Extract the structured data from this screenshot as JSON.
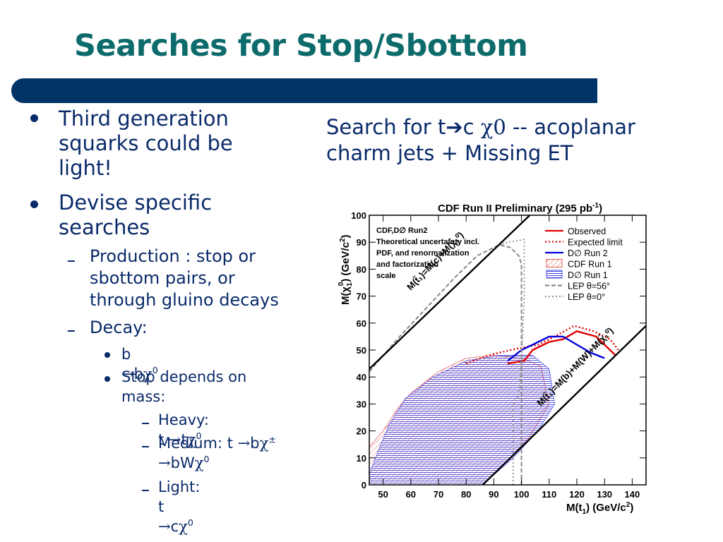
{
  "slide": {
    "title": "Searches for Stop/Sbottom"
  },
  "bullets": {
    "b1": "Third generation squarks could be light!",
    "b2": "Devise specific searches",
    "b2_1": "Production : stop or sbottom pairs, or through gluino decays",
    "b2_2": "Decay:",
    "b3_1_pre": "b ",
    "b3_1_arrow": "→",
    "b3_1_b": "b",
    "b3_1_chi": "χ",
    "b3_1_sup": "0",
    "b3_2": "Stop depends on mass:",
    "b4_1_pre": "Heavy: t ",
    "b4_1_arrow": "→",
    "b4_1_t": "t",
    "b4_1_chi": "χ",
    "b4_1_sup": "0",
    "b4_2_pre": "Medium: t ",
    "b4_2_arrow": "→",
    "b4_2_b": "b",
    "b4_2_chi": "χ",
    "b4_2_sup": "±",
    "b4_2_arrow2": "→",
    "b4_2_bw": "bW",
    "b4_2_chi2": "χ",
    "b4_2_sup2": "0",
    "b4_3_pre": "Light: t ",
    "b4_3_arrow": "→",
    "b4_3_c": "c",
    "b4_3_chi": "χ",
    "b4_3_sup": "0"
  },
  "right": {
    "line1_pre": "Search for t",
    "arrow": "➔",
    "line1_c": "c ",
    "chi0": "χ0",
    "line1_post": "  -- acoplanar",
    "line2": "charm jets + Missing ET"
  },
  "chart_data": {
    "type": "area",
    "title": "CDF Run II Preliminary (295 pb",
    "title_sup": "-1",
    "title_close": ")",
    "xlabel": "M(t",
    "xlabel_sub": "1",
    "xlabel_unit": ") (GeV/c",
    "xlabel_sup": "2",
    "xlabel_close": ")",
    "ylabel": "M(χ",
    "ylabel_sub": "1",
    "ylabel_sup": "0",
    "ylabel_unit": ") (GeV/c",
    "ylabel_sup2": "2",
    "ylabel_close": ")",
    "xlim": [
      45,
      145
    ],
    "ylim": [
      0,
      100
    ],
    "xticks": [
      50,
      60,
      70,
      80,
      90,
      100,
      110,
      120,
      130,
      140
    ],
    "yticks": [
      0,
      10,
      20,
      30,
      40,
      50,
      60,
      70,
      80,
      90,
      100
    ],
    "note_lines": [
      "CDF,D∅ Run2",
      "Theoretical uncertainty incl.",
      "PDF, and renormalization",
      "and factorization",
      "scale"
    ],
    "kinematic_lines": [
      {
        "label": "M(t̃₁)=M(c)+M(χ̃₁⁰)",
        "points": [
          [
            45,
            43
          ],
          [
            103,
            100
          ]
        ]
      },
      {
        "label": "M(t̃₁)=M(b)+M(W)+M(χ̃₁⁰)",
        "points": [
          [
            86,
            0
          ],
          [
            145,
            59
          ]
        ]
      }
    ],
    "series": [
      {
        "name": "Observed",
        "color": "#e00000",
        "dash": "solid",
        "points": [
          [
            95,
            45
          ],
          [
            101,
            46
          ],
          [
            104,
            50
          ],
          [
            110,
            53
          ],
          [
            115,
            54
          ],
          [
            120,
            57
          ],
          [
            127,
            55
          ],
          [
            132,
            50
          ],
          [
            134,
            48
          ]
        ]
      },
      {
        "name": "Expected limit",
        "color": "#e00000",
        "dash": "dotted",
        "points": [
          [
            80,
            45
          ],
          [
            88,
            48
          ],
          [
            96,
            50
          ],
          [
            106,
            52
          ],
          [
            112,
            55
          ],
          [
            119,
            59
          ],
          [
            126,
            57
          ],
          [
            132,
            54
          ],
          [
            135,
            50
          ]
        ]
      },
      {
        "name": "D∅ Run 2",
        "color": "#0000dd",
        "dash": "solid",
        "points": [
          [
            95,
            46
          ],
          [
            100,
            50
          ],
          [
            104,
            52
          ],
          [
            110,
            55
          ],
          [
            115,
            55
          ],
          [
            120,
            52
          ],
          [
            125,
            49
          ],
          [
            130,
            47
          ]
        ]
      },
      {
        "name": "CDF Run 1",
        "color": "#e03030",
        "dash": "hatch",
        "polygon": [
          [
            45,
            0
          ],
          [
            45,
            14
          ],
          [
            50,
            20
          ],
          [
            55,
            28
          ],
          [
            60,
            34
          ],
          [
            70,
            42
          ],
          [
            80,
            47
          ],
          [
            90,
            48
          ],
          [
            100,
            47
          ],
          [
            107,
            44
          ],
          [
            110,
            30
          ],
          [
            103,
            18
          ],
          [
            95,
            9
          ],
          [
            86,
            0
          ]
        ]
      },
      {
        "name": "D∅ Run 1",
        "color": "#3030dd",
        "dash": "fill",
        "polygon": [
          [
            45,
            0
          ],
          [
            45,
            4
          ],
          [
            48,
            12
          ],
          [
            52,
            22
          ],
          [
            58,
            32
          ],
          [
            68,
            40
          ],
          [
            80,
            46
          ],
          [
            92,
            48
          ],
          [
            104,
            48
          ],
          [
            110,
            43
          ],
          [
            112,
            30
          ],
          [
            106,
            20
          ],
          [
            97,
            10
          ],
          [
            86,
            0
          ]
        ]
      },
      {
        "name": "LEP θ=56°",
        "color": "#888888",
        "dash": "dashed",
        "points": [
          [
            45,
            42
          ],
          [
            56,
            55
          ],
          [
            66,
            66
          ],
          [
            76,
            77
          ],
          [
            84,
            85
          ],
          [
            92,
            89
          ],
          [
            96,
            88
          ],
          [
            99,
            85
          ],
          [
            100,
            82
          ],
          [
            100,
            20
          ],
          [
            100,
            0
          ]
        ]
      },
      {
        "name": "LEP θ=0°",
        "color": "#999999",
        "dash": "dotted",
        "points": [
          [
            97,
            0
          ],
          [
            97,
            30
          ],
          [
            99,
            33
          ],
          [
            100,
            45
          ],
          [
            101,
            70
          ],
          [
            101,
            91
          ],
          [
            95,
            90
          ],
          [
            92,
            89
          ]
        ]
      }
    ]
  }
}
